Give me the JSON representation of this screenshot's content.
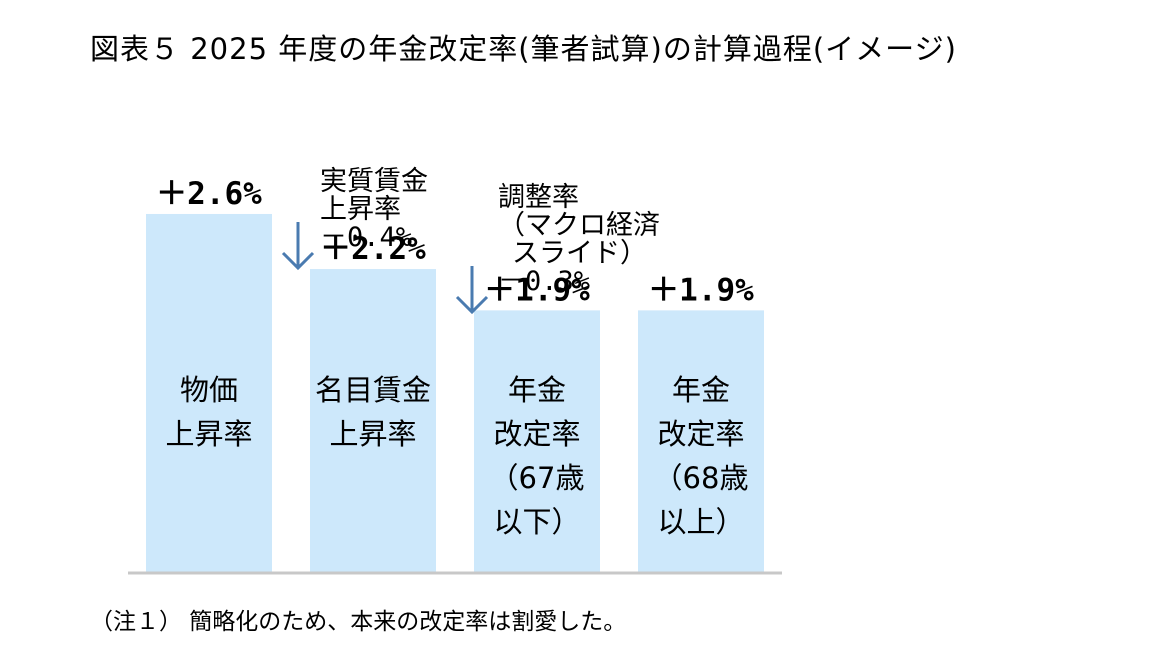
{
  "title": "図表５ 2025 年度の年金改定率(筆者試算)の計算過程(イメージ)",
  "note": "（注１） 簡略化のため、本来の改定率は割愛した。",
  "colors": {
    "bar": "#cde8fb",
    "arrow": "#4a7bb0",
    "axis": "#c8c8c8"
  },
  "chart_data": {
    "type": "bar",
    "categories": [
      [
        "物価",
        "上昇率"
      ],
      [
        "名目賃金",
        "上昇率"
      ],
      [
        "年金",
        "改定率",
        "（67歳",
        "以下）"
      ],
      [
        "年金",
        "改定率",
        "（68歳",
        "以上）"
      ]
    ],
    "values": [
      2.6,
      2.2,
      1.9,
      1.9
    ],
    "value_labels": [
      "＋2.6%",
      "＋2.2%",
      "＋1.9%",
      "＋1.9%"
    ],
    "adjustments": [
      {
        "between": [
          0,
          1
        ],
        "label_lines": [
          "実質賃金",
          "上昇率"
        ],
        "value": -0.4,
        "value_label": "－0.4%"
      },
      {
        "between": [
          1,
          2
        ],
        "label_lines": [
          "調整率",
          "（マクロ経済",
          "スライド）"
        ],
        "value": -0.3,
        "value_label": "－0.3%"
      }
    ]
  }
}
